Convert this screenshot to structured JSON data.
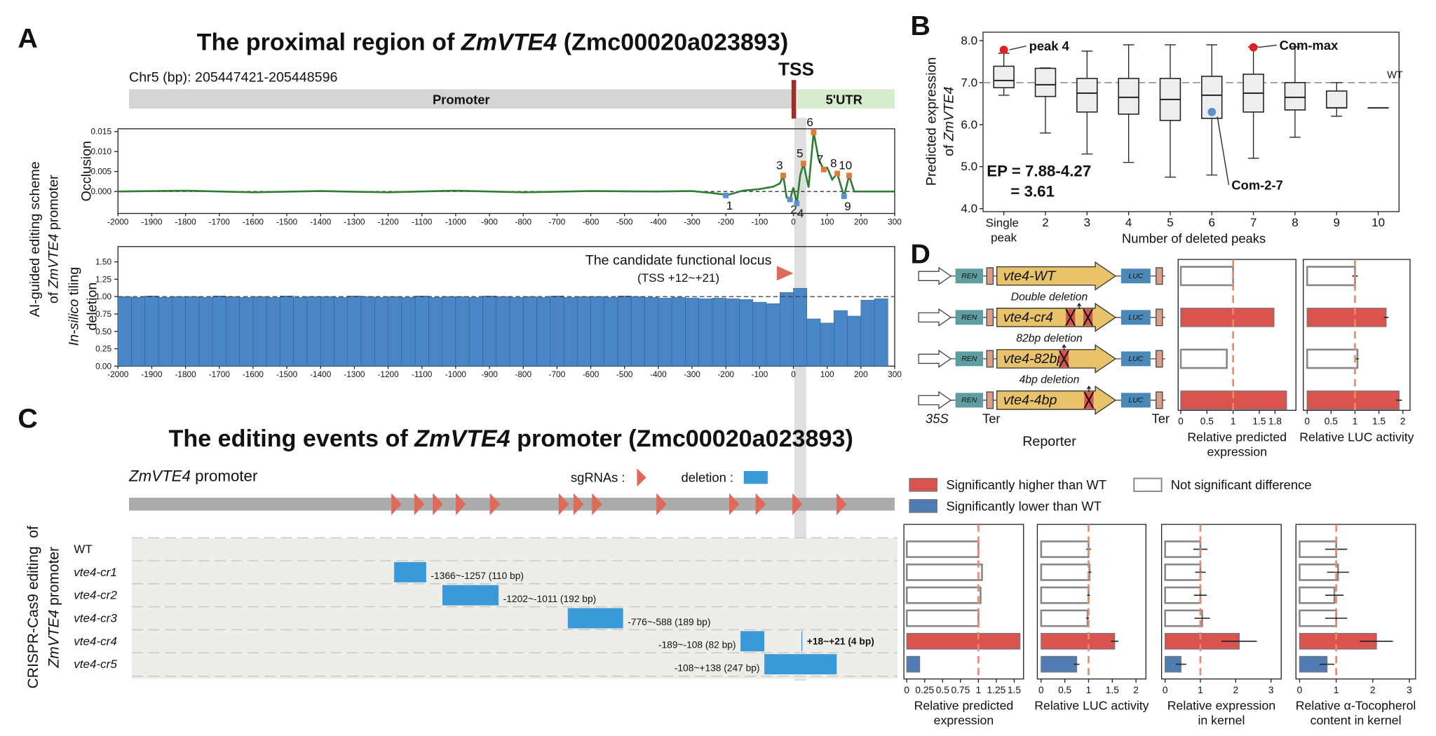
{
  "figure": {
    "panel_labels": [
      "A",
      "B",
      "C",
      "D"
    ],
    "gene": "ZmVTE4"
  },
  "legend": {
    "higher": {
      "label": "Significantly higher than WT",
      "color": "#d9534f"
    },
    "ns": {
      "label": "Not significant difference",
      "color": "#888888"
    },
    "lower": {
      "label": "Significantly lower than WT",
      "color": "#4f7cb3"
    }
  },
  "panel_a": {
    "title_before": "The proximal region of ",
    "title_after": " (Zmc00020a023893)",
    "coordinates": "Chr5 (bp): 205447421-205448596",
    "tss_label": "TSS",
    "promoter_label": "Promoter",
    "utr_label": "5'UTR",
    "side_label_line1": "AI-guided editing scheme",
    "side_label_line2_before": "of ",
    "side_label_line2_after": " promoter",
    "xlim": [
      -2000,
      300
    ],
    "xticks": [
      -2000,
      -1900,
      -1800,
      -1700,
      -1600,
      -1500,
      -1400,
      -1300,
      -1200,
      -1100,
      -1000,
      -900,
      -800,
      -700,
      -600,
      -500,
      -400,
      -300,
      -200,
      -100,
      0,
      100,
      200,
      300
    ],
    "occlusion": {
      "type": "line",
      "ylabel": "Occlusion",
      "color": "#2e7d32",
      "x": [
        -2000,
        -1800,
        -1600,
        -1400,
        -1200,
        -1000,
        -800,
        -600,
        -400,
        -300,
        -250,
        -210,
        -200,
        -150,
        -100,
        -60,
        -40,
        -30,
        -20,
        -10,
        0,
        10,
        20,
        30,
        45,
        60,
        75,
        90,
        100,
        115,
        130,
        150,
        165,
        180,
        200,
        250,
        300
      ],
      "y": [
        0,
        0.0002,
        -0.0002,
        0.0001,
        -0.0002,
        0.0002,
        -0.0002,
        0.0001,
        0,
        0.0001,
        -0.0003,
        -0.0007,
        -0.001,
        0.0002,
        0.0006,
        0.0012,
        0.002,
        0.004,
        -0.0015,
        -0.002,
        0.001,
        -0.003,
        0.004,
        0.007,
        0.001,
        0.0148,
        0.008,
        0.0055,
        0.006,
        0.003,
        0.0045,
        -0.0012,
        0.004,
        0,
        0,
        0,
        0
      ],
      "ylim": [
        -0.0055,
        0.0157
      ],
      "yticks": [
        {
          "value": 0,
          "label": "0.000"
        },
        {
          "value": 0.005,
          "label": "0.005"
        },
        {
          "value": 0.01,
          "label": "0.010"
        },
        {
          "value": 0.015,
          "label": "0.015"
        }
      ],
      "reference": 0,
      "peaks": {
        "labels": [
          "1",
          "2",
          "3",
          "4",
          "5",
          "6",
          "7",
          "8",
          "9",
          "10"
        ],
        "x": [
          -200,
          -10,
          -30,
          10,
          30,
          60,
          90,
          130,
          150,
          165
        ],
        "y": [
          -0.001,
          -0.002,
          0.004,
          -0.003,
          0.007,
          0.0148,
          0.0055,
          0.0045,
          -0.0012,
          0.004
        ]
      }
    },
    "deletion": {
      "type": "bar",
      "ylabel_line1_italic": "In-silico",
      "ylabel_line1_after": " tiling",
      "ylabel_line2": "deletion",
      "color": "#4a86c5",
      "x": [
        -1980,
        -1940,
        -1900,
        -1860,
        -1820,
        -1780,
        -1740,
        -1700,
        -1660,
        -1620,
        -1580,
        -1540,
        -1500,
        -1460,
        -1420,
        -1380,
        -1340,
        -1300,
        -1260,
        -1220,
        -1180,
        -1140,
        -1100,
        -1060,
        -1020,
        -980,
        -940,
        -900,
        -860,
        -820,
        -780,
        -740,
        -700,
        -660,
        -620,
        -580,
        -540,
        -500,
        -460,
        -420,
        -380,
        -340,
        -300,
        -260,
        -220,
        -180,
        -140,
        -100,
        -60,
        -20,
        20,
        60,
        100,
        140,
        180,
        220,
        260
      ],
      "values": [
        1,
        0.99,
        1.01,
        0.99,
        1,
        1,
        0.99,
        1.01,
        1,
        0.99,
        1,
        0.99,
        1.01,
        0.99,
        1,
        1,
        0.99,
        1.01,
        1,
        0.99,
        1,
        0.99,
        1.01,
        0.99,
        1,
        1,
        0.99,
        1.01,
        1,
        0.99,
        1,
        0.99,
        1.01,
        0.99,
        1,
        1,
        0.99,
        1.01,
        1,
        0.99,
        0.98,
        0.99,
        0.98,
        0.97,
        0.98,
        0.97,
        0.96,
        0.92,
        0.9,
        1.06,
        1.12,
        0.68,
        0.62,
        0.8,
        0.72,
        0.95,
        0.97
      ],
      "ylim": [
        0,
        1.72
      ],
      "yticks": [
        {
          "value": 0,
          "label": "0.00"
        },
        {
          "value": 0.25,
          "label": "0.25"
        },
        {
          "value": 0.5,
          "label": "0.50"
        },
        {
          "value": 0.75,
          "label": "0.75"
        },
        {
          "value": 1,
          "label": "1.00"
        },
        {
          "value": 1.25,
          "label": "1.25"
        },
        {
          "value": 1.5,
          "label": "1.50"
        }
      ],
      "reference": 1,
      "annotation_line1": "The candidate functional locus",
      "annotation_line2": "(TSS +12~+21)"
    }
  },
  "panel_b": {
    "type": "box",
    "categories": [
      "Single peak",
      "2",
      "3",
      "4",
      "5",
      "6",
      "7",
      "8",
      "9",
      "10"
    ],
    "min": [
      6.7,
      5.8,
      5.3,
      5.1,
      4.75,
      4.8,
      5.2,
      5.7,
      6.2,
      6.4
    ],
    "q1": [
      6.88,
      6.67,
      6.3,
      6.25,
      6.1,
      6.15,
      6.3,
      6.35,
      6.4,
      6.4
    ],
    "median": [
      7.05,
      6.95,
      6.75,
      6.65,
      6.6,
      6.7,
      6.75,
      6.65,
      6.4,
      6.4
    ],
    "q3": [
      7.39,
      7.34,
      7.1,
      7.1,
      7.1,
      7.15,
      7.2,
      7,
      6.8,
      6.4
    ],
    "max": [
      7.7,
      7.35,
      7.75,
      7.9,
      7.9,
      7.9,
      7.85,
      7.85,
      7,
      6.4
    ],
    "ylim": [
      3.93,
      8.2
    ],
    "yticks": [
      {
        "value": 4,
        "label": "4.0"
      },
      {
        "value": 5,
        "label": "5.0"
      },
      {
        "value": 6,
        "label": "6.0"
      },
      {
        "value": 7,
        "label": "7.0"
      },
      {
        "value": 8,
        "label": "8.0"
      }
    ],
    "reference": 7,
    "reference_label": "WT",
    "ylabel_line1": "Predicted expression",
    "ylabel_line2_before": "of ",
    "xlabel": "Number of deleted peaks",
    "ep_line1": "EP = 7.88-4.27",
    "ep_line2": "= 3.61",
    "highlights": [
      {
        "label": "peak 4",
        "category": "Single peak",
        "value": 7.78,
        "color": "#e02020"
      },
      {
        "label": "Com-max",
        "category": "7",
        "value": 7.84,
        "color": "#e02020"
      },
      {
        "label": "Com-2-7",
        "category": "6",
        "value": 6.3,
        "color": "#5a8fd0"
      }
    ]
  },
  "panel_c": {
    "title_before": "The editing events of ",
    "title_after": " promoter (Zmc00020a023893)",
    "promoter_after": " promoter",
    "sgrna_label": "sgRNAs :",
    "deletion_label": "deletion :",
    "side_label_line1": "CRISPR-Cas9 editing  of",
    "side_label_line2_after": " promoter",
    "xlim": [
      -2267,
      335
    ],
    "sgrna_positions": [
      -1360,
      -1282,
      -1219,
      -1141,
      -1025,
      -791,
      -741,
      -678,
      -459,
      -212,
      -122,
      3,
      153
    ],
    "deletion_color": "#3a9ad9",
    "rows": [
      {
        "name": "WT"
      },
      {
        "name": "vte4-cr1",
        "deletions": [
          {
            "start": -1366,
            "end": -1257,
            "label": "-1366~-1257 (110 bp)"
          }
        ]
      },
      {
        "name": "vte4-cr2",
        "deletions": [
          {
            "start": -1202,
            "end": -1011,
            "label": "-1202~-1011 (192 bp)"
          }
        ]
      },
      {
        "name": "vte4-cr3",
        "deletions": [
          {
            "start": -776,
            "end": -588,
            "label": "-776~-588 (189 bp)"
          }
        ]
      },
      {
        "name": "vte4-cr4",
        "deletions": [
          {
            "start": -189,
            "end": -108,
            "label": "-189~-108 (82 bp)"
          },
          {
            "start": 18,
            "end": 21,
            "label": "+18~+21 (4 bp)",
            "label_color": "#b22222"
          }
        ]
      },
      {
        "name": "vte4-cr5",
        "deletions": [
          {
            "start": -108,
            "end": 138,
            "label": "-108~+138 (247 bp)"
          }
        ]
      }
    ]
  },
  "panel_d": {
    "ren_label": "REN",
    "luc_label": "LUC",
    "promoter_35s": "35S",
    "ter_label": "Ter",
    "reporter_label": "Reporter",
    "constructs": [
      {
        "name": "vte4-WT"
      },
      {
        "name": "vte4-cr4",
        "annotation": "Double deletion"
      },
      {
        "name": "vte4-82bp",
        "annotation": "82bp deletion"
      },
      {
        "name": "vte4-4bp",
        "annotation": "4bp deletion"
      }
    ],
    "construct_charts": [
      {
        "type": "bar",
        "xlabel_line1": "Relative predicted",
        "xlabel_line2": "expression",
        "xlim": [
          -0.05,
          2.2
        ],
        "xticks": [
          0,
          0.5,
          1,
          1.5,
          1.8
        ],
        "reference": 1,
        "values": [
          1,
          1.78,
          0.88,
          2.02
        ],
        "significance": [
          "ns",
          "higher",
          "ns",
          "higher"
        ]
      },
      {
        "type": "bar",
        "xlabel_line1": "Relative LUC activity",
        "xlim": [
          -0.08,
          2.15
        ],
        "xticks": [
          0,
          0.5,
          1,
          1.5,
          2
        ],
        "reference": 1,
        "values": [
          1,
          1.65,
          1.05,
          1.92
        ],
        "errors": [
          0.06,
          0.05,
          0.03,
          0.06
        ],
        "significance": [
          "ns",
          "higher",
          "ns",
          "higher"
        ]
      }
    ],
    "line_charts": [
      {
        "type": "bar",
        "xlabel_line1": "Relative predicted",
        "xlabel_line2": "expression",
        "xlim": [
          -0.04,
          1.63
        ],
        "xticks": [
          0,
          0.25,
          0.5,
          0.75,
          1,
          1.25,
          1.5
        ],
        "reference": 1,
        "values": [
          1,
          1.05,
          1.03,
          1,
          1.58,
          0.18
        ],
        "significance": [
          "ns",
          "ns",
          "ns",
          "ns",
          "higher",
          "lower"
        ]
      },
      {
        "type": "bar",
        "xlabel_line1": "Relative LUC activity",
        "xlim": [
          -0.08,
          2.21
        ],
        "xticks": [
          0,
          0.5,
          1,
          1.5,
          2
        ],
        "reference": 1,
        "values": [
          1,
          1.02,
          1,
          0.98,
          1.55,
          0.75
        ],
        "errors": [
          0.05,
          0.04,
          0.03,
          0.03,
          0.08,
          0.06
        ],
        "significance": [
          "ns",
          "ns",
          "ns",
          "ns",
          "higher",
          "lower"
        ]
      },
      {
        "type": "bar",
        "xlabel_line1": "Relative expression",
        "xlabel_line2": "in kernel",
        "xlim": [
          -0.1,
          3.29
        ],
        "xticks": [
          0,
          1,
          2,
          3
        ],
        "reference": 1,
        "values": [
          1,
          1,
          1,
          1.05,
          2.1,
          0.45
        ],
        "errors": [
          0.2,
          0.15,
          0.18,
          0.22,
          0.5,
          0.15
        ],
        "significance": [
          "ns",
          "ns",
          "ns",
          "ns",
          "higher",
          "lower"
        ]
      },
      {
        "type": "bar",
        "xlabel_line1": "Relative α-Tocopherol",
        "xlabel_line2": "content in kernel",
        "xlim": [
          -0.1,
          3.17
        ],
        "xticks": [
          0,
          1,
          2,
          3
        ],
        "reference": 1,
        "values": [
          1,
          1.05,
          0.95,
          1,
          2.1,
          0.75
        ],
        "errors": [
          0.3,
          0.3,
          0.25,
          0.3,
          0.45,
          0.2
        ],
        "significance": [
          "ns",
          "ns",
          "ns",
          "ns",
          "higher",
          "lower"
        ]
      }
    ]
  }
}
